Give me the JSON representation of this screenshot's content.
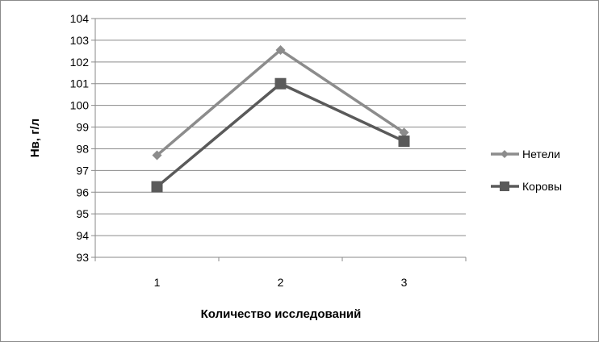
{
  "chart_data": {
    "type": "line",
    "title": "",
    "xlabel": "Количество исследований",
    "ylabel": "Нв, г/л",
    "categories": [
      "1",
      "2",
      "3"
    ],
    "ylim": [
      93,
      104
    ],
    "yticks": [
      93,
      94,
      95,
      96,
      97,
      98,
      99,
      100,
      101,
      102,
      103,
      104
    ],
    "grid": true,
    "legend_placement": "right",
    "series": [
      {
        "name": "Нетели",
        "values": [
          97.7,
          102.55,
          98.75
        ],
        "color": "#8c8c8c",
        "marker": "diamond"
      },
      {
        "name": "Коровы",
        "values": [
          96.25,
          101.0,
          98.35
        ],
        "color": "#5a5a5a",
        "marker": "square"
      }
    ]
  }
}
